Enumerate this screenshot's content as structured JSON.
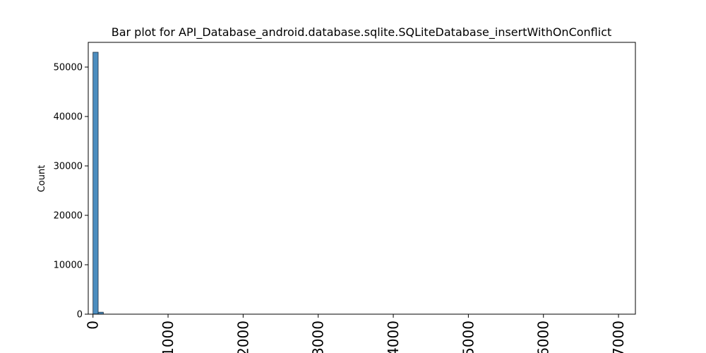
{
  "chart_data": {
    "type": "bar",
    "title": "Bar plot for API_Database_android.database.sqlite.SQLiteDatabase_insertWithOnConflict",
    "xlabel": "",
    "ylabel": "Count",
    "ylim": [
      0,
      55000
    ],
    "xlim": [
      -63,
      7225
    ],
    "x_ticks": [
      0,
      1000,
      2000,
      3000,
      4000,
      5000,
      6000,
      7000
    ],
    "x_tick_labels": [
      "0",
      "1000",
      "2000",
      "3000",
      "4000",
      "5000",
      "6000",
      "7000"
    ],
    "y_ticks": [
      0,
      10000,
      20000,
      30000,
      40000,
      50000
    ],
    "y_tick_labels": [
      "0",
      "10000",
      "20000",
      "30000",
      "40000",
      "50000"
    ],
    "bin_width": 69,
    "bins": [
      {
        "x_start": 0,
        "count": 53000
      },
      {
        "x_start": 69,
        "count": 400
      }
    ],
    "bar_color": "#4c8dbf",
    "bar_edge_color": "#1f2f3f",
    "grid": false,
    "legend": "none"
  }
}
